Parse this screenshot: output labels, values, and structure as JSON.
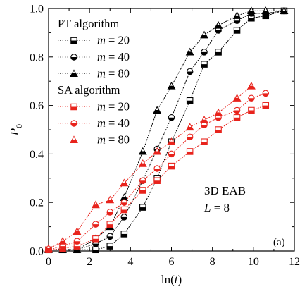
{
  "chart_data": {
    "type": "line",
    "xlabel": "ln(t)",
    "ylabel": "P",
    "ylabel_subscript": "0",
    "xlim": [
      0,
      12
    ],
    "ylim": [
      0,
      1.0
    ],
    "xticks": [
      0,
      2,
      4,
      6,
      8,
      10,
      12
    ],
    "xtick_labels": [
      "0",
      "2",
      "4",
      "6",
      "8",
      "10",
      "12"
    ],
    "yticks": [
      0.0,
      0.2,
      0.4,
      0.6,
      0.8,
      1.0
    ],
    "ytick_labels": [
      "0.0",
      "0.2",
      "0.4",
      "0.6",
      "0.8",
      "1.0"
    ],
    "grid": false,
    "legend_position": "top-left",
    "annotations": [
      "3D EAB",
      "L = 8",
      "(a)"
    ],
    "legend_groups": [
      {
        "title": "PT algorithm",
        "series": [
          "PT m = 20",
          "PT m = 40",
          "PT m = 80"
        ]
      },
      {
        "title": "SA algorithm",
        "series": [
          "SA m = 20",
          "SA m = 40",
          "SA m = 80"
        ]
      }
    ],
    "series": [
      {
        "name": "PT m = 20",
        "legend_label": "m = 20",
        "marker": "square",
        "color": "#000000",
        "x": [
          0,
          0.69,
          1.39,
          2.3,
          3.0,
          3.69,
          4.6,
          5.3,
          6.0,
          6.9,
          7.6,
          8.29,
          9.2,
          9.9,
          10.6,
          11.5
        ],
        "y": [
          0.005,
          0.005,
          0.005,
          0.005,
          0.02,
          0.07,
          0.18,
          0.3,
          0.45,
          0.62,
          0.77,
          0.82,
          0.91,
          0.96,
          0.97,
          0.99
        ]
      },
      {
        "name": "PT m = 40",
        "legend_label": "m = 40",
        "marker": "circle",
        "color": "#000000",
        "x": [
          0,
          0.69,
          1.39,
          2.3,
          3.0,
          3.69,
          4.6,
          5.3,
          6.0,
          6.9,
          7.6,
          8.29,
          9.2,
          9.9,
          10.6,
          11.5
        ],
        "y": [
          0.005,
          0.005,
          0.005,
          0.03,
          0.06,
          0.14,
          0.29,
          0.42,
          0.55,
          0.74,
          0.82,
          0.91,
          0.95,
          0.98,
          0.98,
          0.99
        ]
      },
      {
        "name": "PT m = 80",
        "legend_label": "m = 80",
        "marker": "triangle",
        "color": "#000000",
        "x": [
          0,
          0.69,
          1.39,
          2.3,
          3.0,
          3.69,
          4.6,
          5.3,
          6.0,
          6.9,
          7.6,
          8.29,
          9.2,
          9.9,
          10.6,
          11.5
        ],
        "y": [
          0.005,
          0.005,
          0.005,
          0.05,
          0.1,
          0.22,
          0.41,
          0.58,
          0.68,
          0.82,
          0.89,
          0.93,
          0.97,
          0.99,
          0.99,
          0.99
        ]
      },
      {
        "name": "SA m = 20",
        "legend_label": "m = 20",
        "marker": "square",
        "color": "#e8231c",
        "x": [
          0,
          0.69,
          1.39,
          2.3,
          3.0,
          3.69,
          4.6,
          5.3,
          6.0,
          6.9,
          7.6,
          8.29,
          9.2,
          9.9,
          10.6
        ],
        "y": [
          0.005,
          0.01,
          0.02,
          0.05,
          0.11,
          0.17,
          0.25,
          0.29,
          0.35,
          0.41,
          0.45,
          0.5,
          0.55,
          0.58,
          0.6
        ]
      },
      {
        "name": "SA m = 40",
        "legend_label": "m = 40",
        "marker": "circle",
        "color": "#e8231c",
        "x": [
          0,
          0.69,
          1.39,
          2.3,
          3.0,
          3.69,
          4.6,
          5.3,
          6.0,
          6.9,
          7.6,
          8.29,
          9.2,
          9.9,
          10.6
        ],
        "y": [
          0.005,
          0.02,
          0.04,
          0.11,
          0.16,
          0.2,
          0.29,
          0.34,
          0.4,
          0.47,
          0.52,
          0.55,
          0.58,
          0.63,
          0.65
        ]
      },
      {
        "name": "SA m = 80",
        "legend_label": "m = 80",
        "marker": "triangle",
        "color": "#e8231c",
        "x": [
          0,
          0.69,
          1.39,
          2.3,
          3.0,
          3.69,
          4.6,
          5.3,
          6.0,
          6.9,
          7.6,
          8.29,
          9.2,
          9.9
        ],
        "y": [
          0.01,
          0.04,
          0.08,
          0.19,
          0.21,
          0.28,
          0.36,
          0.41,
          0.45,
          0.51,
          0.54,
          0.57,
          0.63,
          0.68
        ]
      }
    ]
  }
}
